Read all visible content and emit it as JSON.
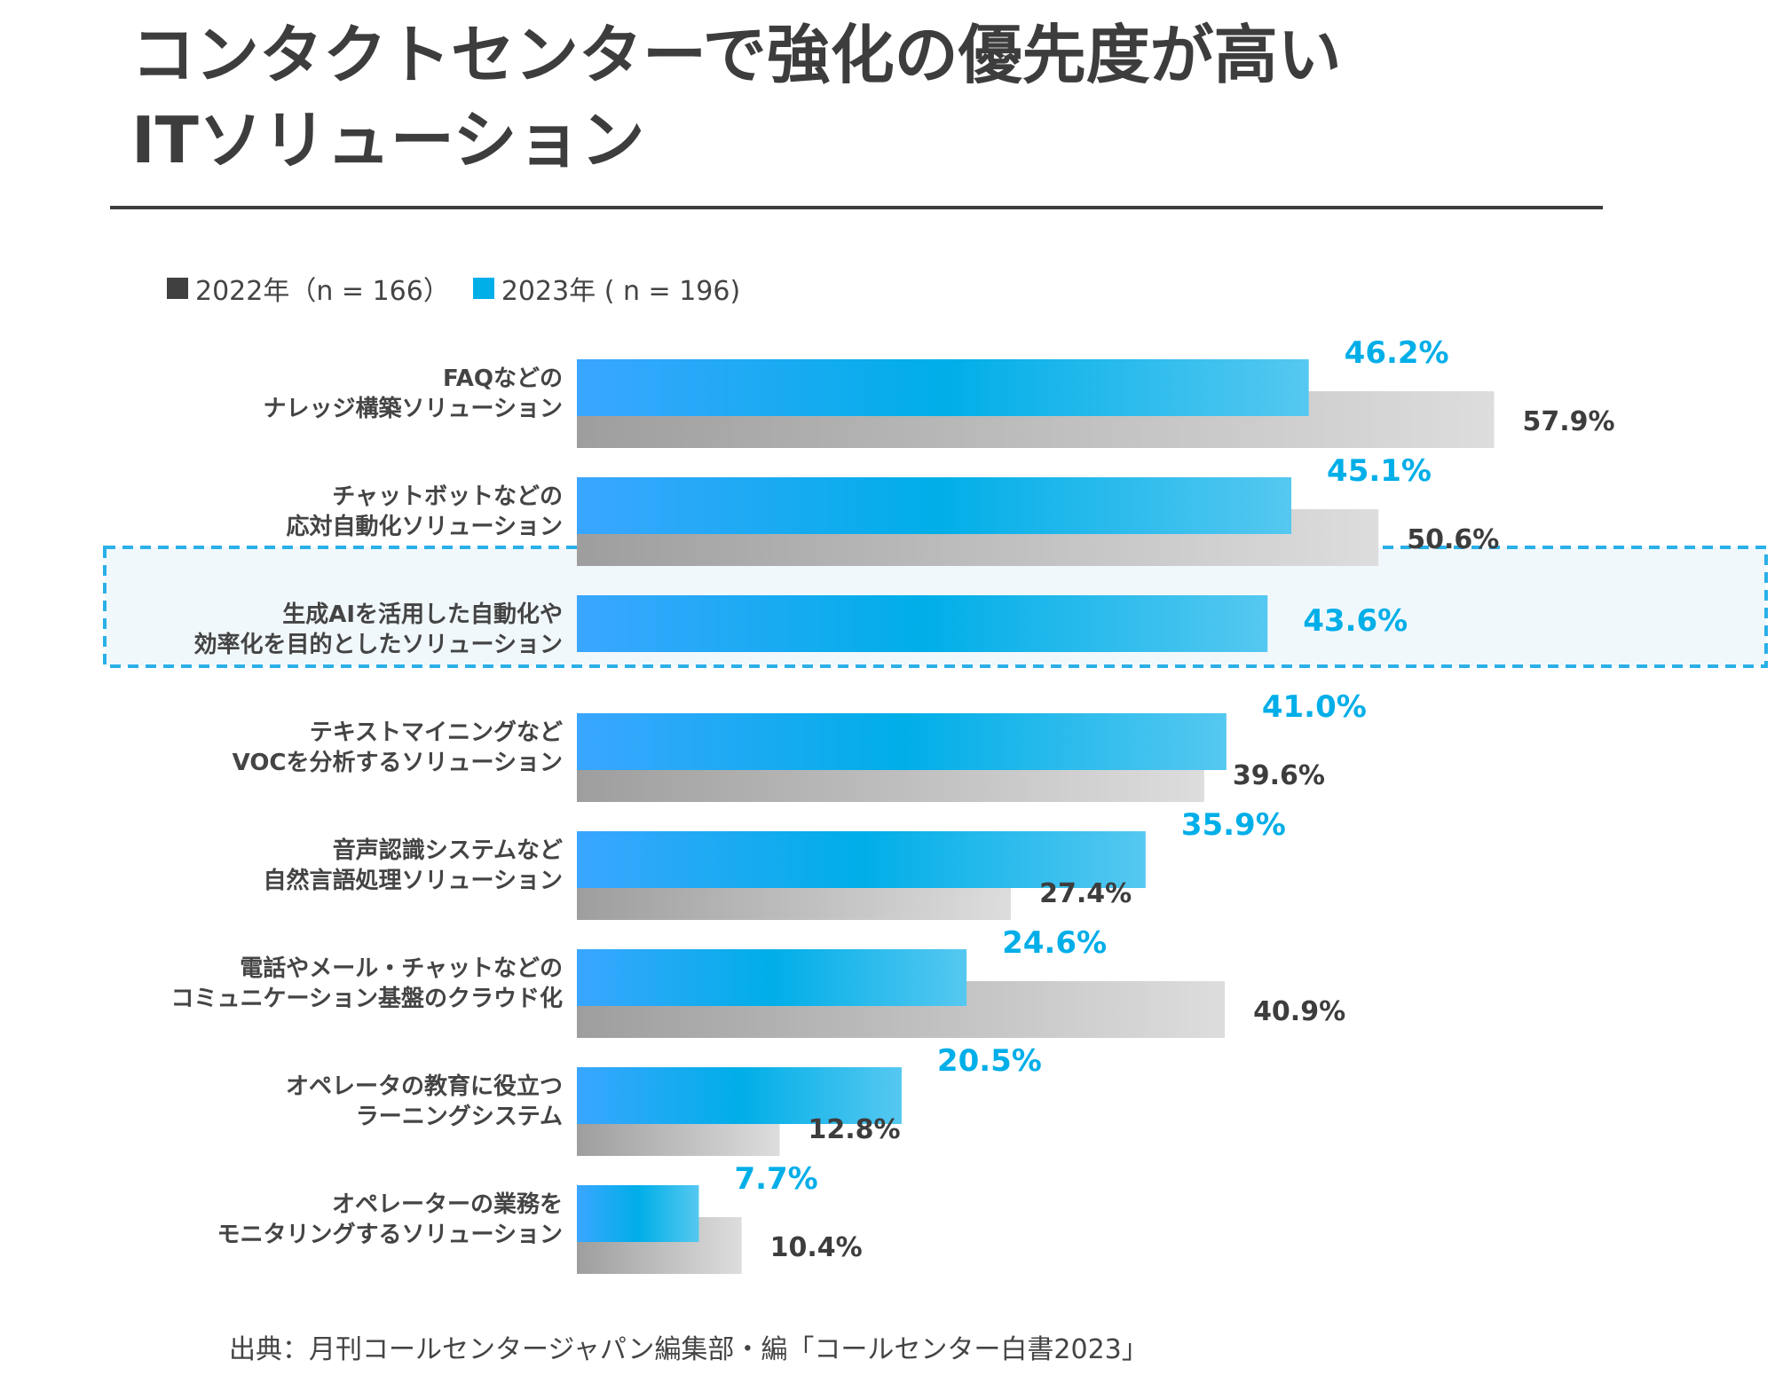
{
  "title": {
    "line1": "コンタクトセンターで強化の優先度が高い",
    "line2": "ITソリューション"
  },
  "legend": {
    "items": [
      {
        "label": "2022年（n = 166）",
        "color": "#404040"
      },
      {
        "label": "2023年 ( n =  196)",
        "color": "#00aee8"
      }
    ]
  },
  "source": "出典：月刊コールセンタージャパン編集部・編「コールセンター白書2023」",
  "colors": {
    "bar_2023_start": "#3aa6ff",
    "bar_2023_mid": "#00aee8",
    "bar_2023_end": "#55c8f0",
    "bar_2022_start": "#9e9e9e",
    "bar_2022_end": "#dddddd",
    "label_2023": "#00aee8",
    "label_2022": "#3d3d3d",
    "highlight_border": "#2ab0e8",
    "highlight_fill": "#f1f8fc"
  },
  "chart_data": {
    "type": "bar",
    "orientation": "horizontal",
    "xlim": [
      0,
      100
    ],
    "categories": [
      [
        "FAQなどの",
        "ナレッジ構築ソリューション"
      ],
      [
        "チャットボットなどの",
        "応対自動化ソリューション"
      ],
      [
        "生成AIを活用した自動化や",
        "効率化を目的としたソリューション"
      ],
      [
        "テキストマイニングなど",
        "VOCを分析するソリューション"
      ],
      [
        "音声認識システムなど",
        "自然言語処理ソリューション"
      ],
      [
        "電話やメール・チャットなどの",
        "コミュニケーション基盤のクラウド化"
      ],
      [
        "オペレータの教育に役立つ",
        "ラーニングシステム"
      ],
      [
        "オペレーターの業務を",
        "モニタリングするソリューション"
      ]
    ],
    "series": [
      {
        "name": "2023年 ( n =  196)",
        "values": [
          46.2,
          45.1,
          43.6,
          41.0,
          35.9,
          24.6,
          20.5,
          7.7
        ],
        "labels": [
          "46.2%",
          "45.1%",
          "43.6%",
          "41.0%",
          "35.9%",
          "24.6%",
          "20.5%",
          "7.7%"
        ]
      },
      {
        "name": "2022年（n = 166）",
        "values": [
          57.9,
          50.6,
          null,
          39.6,
          27.4,
          40.9,
          12.8,
          10.4
        ],
        "labels": [
          "57.9%",
          "50.6%",
          "",
          "39.6%",
          "27.4%",
          "40.9%",
          "12.8%",
          "10.4%"
        ]
      }
    ],
    "highlighted_category_index": 2,
    "grid": false,
    "legend_position": "top-left"
  }
}
